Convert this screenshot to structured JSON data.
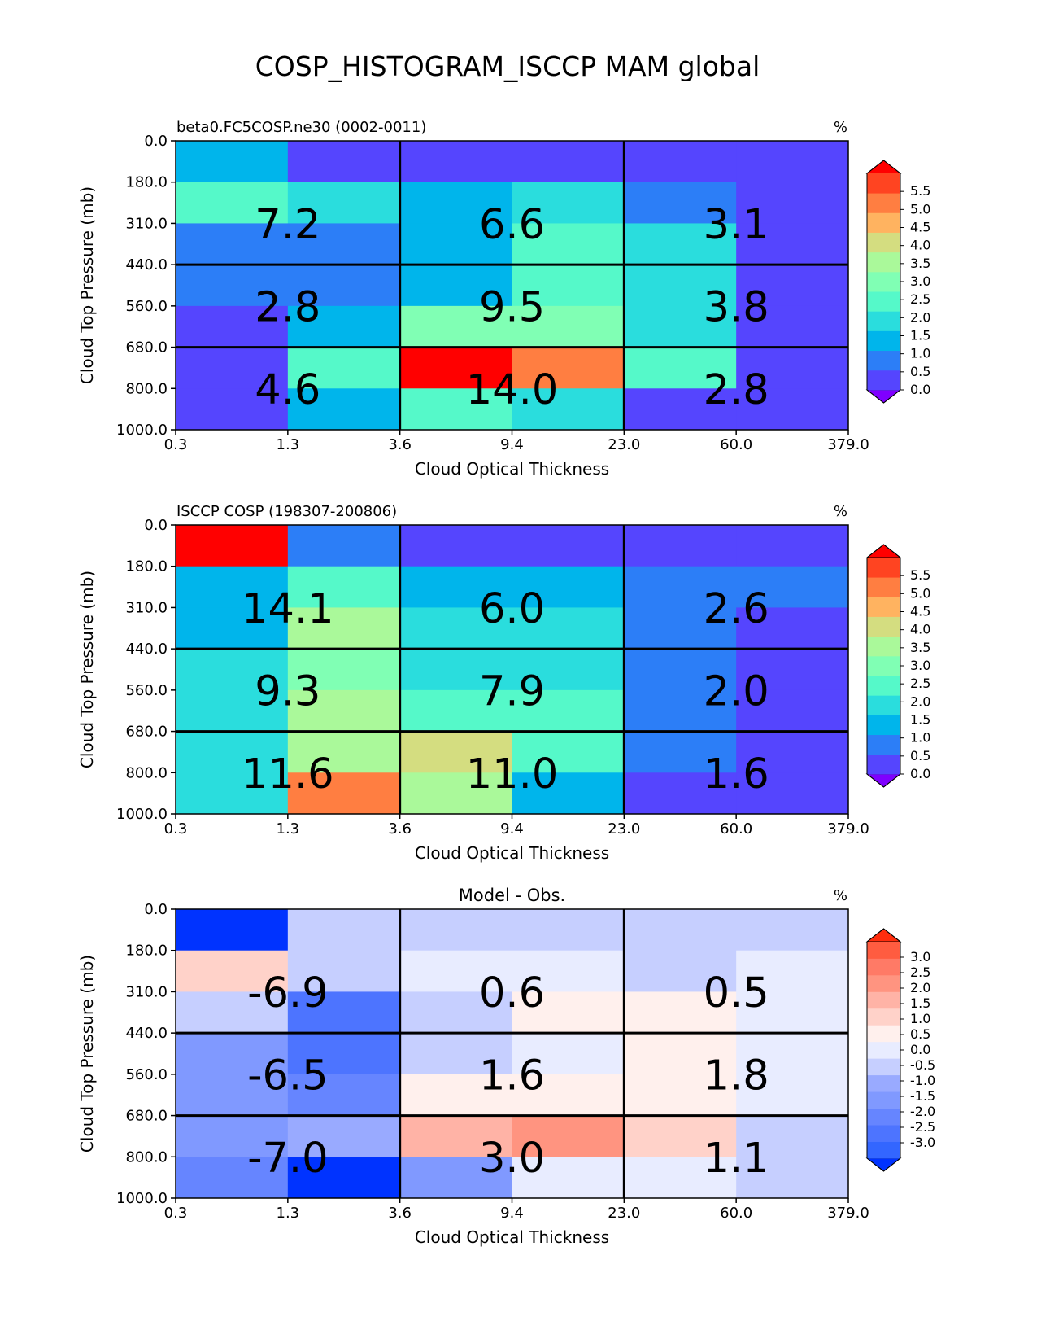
{
  "figure_title": "COSP_HISTOGRAM_ISCCP MAM global",
  "chart_data": [
    {
      "type": "heatmap",
      "title": "beta0.FC5COSP.ne30 (0002-0011)",
      "units": "%",
      "xlabel": "Cloud Optical Thickness",
      "ylabel": "Cloud Top Pressure (mb)",
      "xticks": [
        "0.3",
        "1.3",
        "3.6",
        "9.4",
        "23.0",
        "60.0",
        "379.0"
      ],
      "yticks": [
        "0.0",
        "180.0",
        "310.0",
        "440.0",
        "560.0",
        "680.0",
        "800.0",
        "1000.0"
      ],
      "colormap": "rainbow",
      "colorbar_ticks": [
        "0.0",
        "0.5",
        "1.0",
        "1.5",
        "2.0",
        "2.5",
        "3.0",
        "3.5",
        "4.0",
        "4.5",
        "5.0",
        "5.5"
      ],
      "colorbar_range": [
        0,
        6
      ],
      "cells": [
        [
          1.3,
          0.3,
          0.3,
          0.3,
          0.3,
          0.3
        ],
        [
          2.3,
          1.9,
          1.3,
          1.9,
          0.9,
          0.3
        ],
        [
          0.9,
          0.9,
          1.3,
          2.2,
          1.9,
          0.3
        ],
        [
          0.9,
          0.9,
          1.3,
          2.2,
          1.9,
          0.3
        ],
        [
          0.3,
          1.3,
          2.6,
          2.6,
          1.9,
          0.3
        ],
        [
          0.3,
          2.2,
          5.9,
          4.8,
          2.2,
          0.3
        ],
        [
          0.3,
          1.3,
          2.2,
          1.9,
          0.3,
          0.3
        ]
      ],
      "block_labels": [
        [
          "7.2",
          "6.6",
          "3.1"
        ],
        [
          "2.8",
          "9.5",
          "3.8"
        ],
        [
          "4.6",
          "14.0",
          "2.8"
        ]
      ]
    },
    {
      "type": "heatmap",
      "title": "ISCCP COSP (198307-200806)",
      "units": "%",
      "xlabel": "Cloud Optical Thickness",
      "ylabel": "Cloud Top Pressure (mb)",
      "xticks": [
        "0.3",
        "1.3",
        "3.6",
        "9.4",
        "23.0",
        "60.0",
        "379.0"
      ],
      "yticks": [
        "0.0",
        "180.0",
        "310.0",
        "440.0",
        "560.0",
        "680.0",
        "800.0",
        "1000.0"
      ],
      "colormap": "rainbow",
      "colorbar_ticks": [
        "0.0",
        "0.5",
        "1.0",
        "1.5",
        "2.0",
        "2.5",
        "3.0",
        "3.5",
        "4.0",
        "4.5",
        "5.0",
        "5.5"
      ],
      "colorbar_range": [
        0,
        6
      ],
      "cells": [
        [
          5.9,
          0.9,
          0.3,
          0.3,
          0.3,
          0.3
        ],
        [
          1.3,
          2.2,
          1.3,
          1.3,
          0.9,
          0.9
        ],
        [
          1.3,
          3.2,
          1.9,
          1.9,
          0.9,
          0.3
        ],
        [
          1.9,
          2.6,
          1.9,
          1.9,
          0.9,
          0.3
        ],
        [
          1.9,
          3.2,
          2.2,
          2.2,
          0.9,
          0.3
        ],
        [
          1.9,
          3.2,
          3.7,
          2.4,
          0.9,
          0.3
        ],
        [
          1.9,
          4.8,
          3.2,
          1.3,
          0.3,
          0.3
        ]
      ],
      "block_labels": [
        [
          "14.1",
          "6.0",
          "2.6"
        ],
        [
          "9.3",
          "7.9",
          "2.0"
        ],
        [
          "11.6",
          "11.0",
          "1.6"
        ]
      ]
    },
    {
      "type": "heatmap",
      "title": "Model - Obs.",
      "units": "%",
      "xlabel": "Cloud Optical Thickness",
      "ylabel": "Cloud Top Pressure (mb)",
      "xticks": [
        "0.3",
        "1.3",
        "3.6",
        "9.4",
        "23.0",
        "60.0",
        "379.0"
      ],
      "yticks": [
        "0.0",
        "180.0",
        "310.0",
        "440.0",
        "560.0",
        "680.0",
        "800.0",
        "1000.0"
      ],
      "colormap": "diverging-blue-red",
      "colorbar_ticks": [
        "-3.0",
        "-2.5",
        "-2.0",
        "-1.5",
        "-1.0",
        "-0.5",
        "0.0",
        "0.5",
        "1.0",
        "1.5",
        "2.0",
        "2.5",
        "3.0"
      ],
      "colorbar_range": [
        -3.5,
        3.5
      ],
      "cells": [
        [
          -4.0,
          -0.2,
          -0.2,
          -0.2,
          -0.2,
          -0.2
        ],
        [
          1.2,
          -0.2,
          0.2,
          0.2,
          -0.2,
          0.2
        ],
        [
          -0.2,
          -2.2,
          -0.2,
          0.7,
          0.7,
          0.2
        ],
        [
          -1.2,
          -2.2,
          -0.2,
          0.2,
          0.7,
          0.2
        ],
        [
          -1.2,
          -1.7,
          0.7,
          0.7,
          0.7,
          0.2
        ],
        [
          -1.2,
          -0.7,
          1.7,
          2.2,
          1.2,
          -0.2
        ],
        [
          -1.7,
          -4.0,
          -1.2,
          0.2,
          0.2,
          -0.2
        ]
      ],
      "block_labels": [
        [
          "-6.9",
          "0.6",
          "0.5"
        ],
        [
          "-6.5",
          "1.6",
          "1.8"
        ],
        [
          "-7.0",
          "3.0",
          "1.1"
        ]
      ]
    }
  ]
}
